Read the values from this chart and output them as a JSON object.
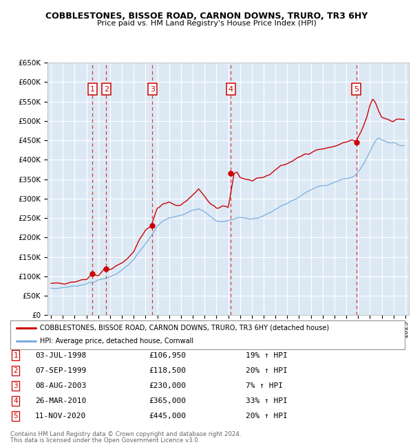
{
  "title": "COBBLESTONES, BISSOE ROAD, CARNON DOWNS, TRURO, TR3 6HY",
  "subtitle": "Price paid vs. HM Land Registry's House Price Index (HPI)",
  "ylim": [
    0,
    650000
  ],
  "yticks": [
    0,
    50000,
    100000,
    150000,
    200000,
    250000,
    300000,
    350000,
    400000,
    450000,
    500000,
    550000,
    600000,
    650000
  ],
  "ytick_labels": [
    "£0",
    "£50K",
    "£100K",
    "£150K",
    "£200K",
    "£250K",
    "£300K",
    "£350K",
    "£400K",
    "£450K",
    "£500K",
    "£550K",
    "£600K",
    "£650K"
  ],
  "xlim_start": 1994.7,
  "xlim_end": 2025.3,
  "plot_bg_color": "#dce9f5",
  "grid_color": "#ffffff",
  "red_line_color": "#cc0000",
  "blue_line_color": "#7aacdb",
  "sale_dates_decimal": [
    1998.5,
    1999.67,
    2003.58,
    2010.23,
    2020.86
  ],
  "sale_prices": [
    106950,
    118500,
    230000,
    365000,
    445000
  ],
  "sale_labels": [
    "1",
    "2",
    "3",
    "4",
    "5"
  ],
  "sale_date_strs": [
    "03-JUL-1998",
    "07-SEP-1999",
    "08-AUG-2003",
    "26-MAR-2010",
    "11-NOV-2020"
  ],
  "sale_price_strs": [
    "£106,950",
    "£118,500",
    "£230,000",
    "£365,000",
    "£445,000"
  ],
  "sale_hpi_strs": [
    "19% ↑ HPI",
    "20% ↑ HPI",
    "7% ↑ HPI",
    "33% ↑ HPI",
    "20% ↑ HPI"
  ],
  "legend_label_red": "COBBLESTONES, BISSOE ROAD, CARNON DOWNS, TRURO, TR3 6HY (detached house)",
  "legend_label_blue": "HPI: Average price, detached house, Cornwall",
  "footer_line1": "Contains HM Land Registry data © Crown copyright and database right 2024.",
  "footer_line2": "This data is licensed under the Open Government Licence v3.0."
}
